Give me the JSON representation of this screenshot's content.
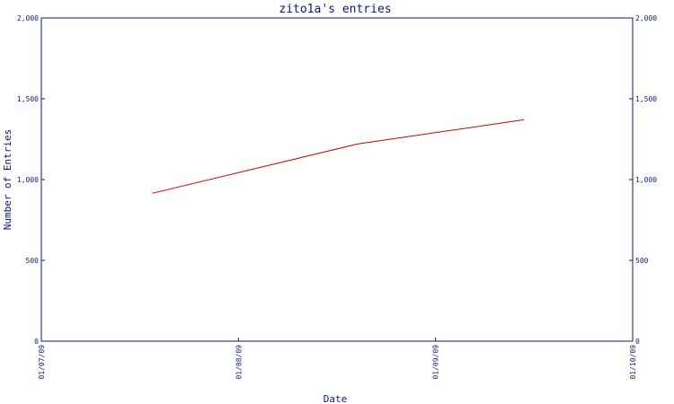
{
  "chart_data": {
    "type": "line",
    "title": "zito1a's entries",
    "xlabel": "Date",
    "ylabel": "Number of Entries",
    "x_ticks": [
      "01/07/09",
      "01/08/09",
      "01/09/09",
      "01/10/09"
    ],
    "y_ticks": [
      "0",
      "500",
      "1,000",
      "1,500",
      "2,000"
    ],
    "ylim": [
      0,
      2000
    ],
    "xlim": [
      "2009-01-07",
      "2009-01-10"
    ],
    "series": [
      {
        "color": "#cc0000",
        "points": [
          {
            "x": "2009-01-07 13:30",
            "y": 915
          },
          {
            "x": "2009-01-08 14:30",
            "y": 1220
          },
          {
            "x": "2009-01-09 10:45",
            "y": 1370
          }
        ]
      }
    ],
    "right_axis_mirror": true,
    "grid": false
  },
  "colors": {
    "axis": "#0b1a7a",
    "line": "#cc0000",
    "background": "#ffffff"
  }
}
